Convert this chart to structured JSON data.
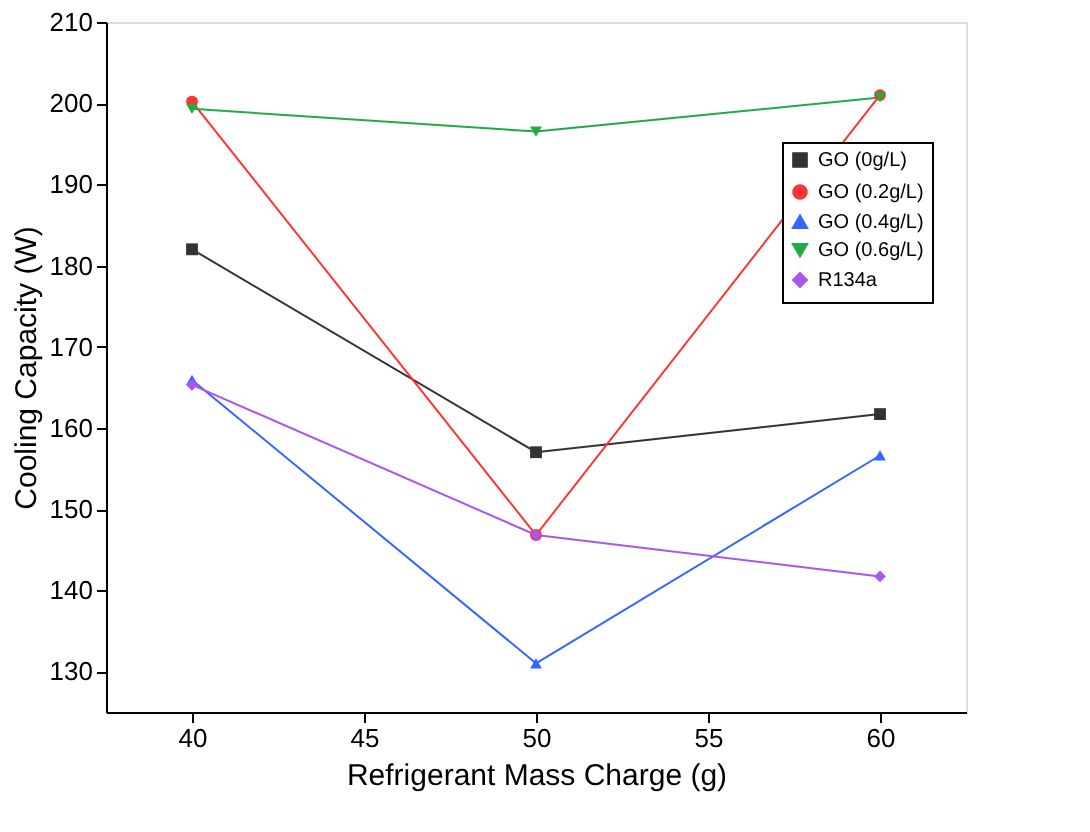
{
  "chart_data": {
    "type": "line",
    "xlabel": "Refrigerant Mass Charge (g)",
    "ylabel": "Cooling Capacity (W)",
    "x": [
      40,
      50,
      60
    ],
    "xlim": [
      37.5,
      62.5
    ],
    "xticks": [
      40,
      45,
      50,
      55,
      60
    ],
    "ylim": [
      125,
      210
    ],
    "yticks": [
      130,
      140,
      150,
      160,
      170,
      180,
      190,
      200,
      210
    ],
    "legend": "top right",
    "grid": false,
    "series": [
      {
        "name": "GO (0g/L)",
        "color": "#333333",
        "marker": "square",
        "values": [
          182,
          157,
          161.7
        ]
      },
      {
        "name": "GO (0.2g/L)",
        "color": "#ff3333",
        "marker": "circle",
        "values": [
          200.2,
          146.8,
          201
        ]
      },
      {
        "name": "GO (0.4g/L)",
        "color": "#3366ff",
        "marker": "triangle",
        "values": [
          165.9,
          131,
          156.6
        ]
      },
      {
        "name": "GO (0.6g/L)",
        "color": "#22aa44",
        "marker": "triangle-down",
        "values": [
          199.3,
          196.5,
          200.7
        ]
      },
      {
        "name": "R134a",
        "color": "#aa55ee",
        "marker": "diamond",
        "values": [
          165.3,
          146.8,
          141.7
        ]
      }
    ]
  }
}
